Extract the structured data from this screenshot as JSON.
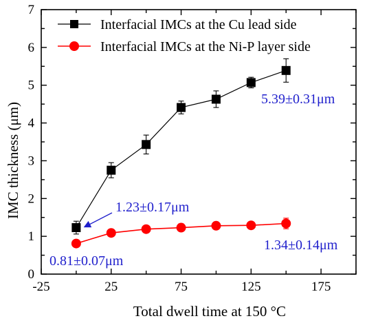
{
  "chart_data": {
    "type": "line",
    "xlabel": "Total dwell time at 150 °C",
    "ylabel": "IMC thickness (μm)",
    "xlim": [
      -25,
      200
    ],
    "ylim": [
      0,
      7
    ],
    "xticks": [
      -25,
      25,
      75,
      125,
      175
    ],
    "yticks": [
      0,
      1,
      2,
      3,
      4,
      5,
      6,
      7
    ],
    "x_minor_step": 25,
    "legend_position": "top-left",
    "series": [
      {
        "name": "Interfacial IMCs at the Cu lead side",
        "color": "#000000",
        "marker": "square",
        "x": [
          0,
          25,
          50,
          75,
          100,
          125,
          150
        ],
        "y": [
          1.23,
          2.75,
          3.43,
          4.41,
          4.63,
          5.07,
          5.39
        ],
        "err": [
          0.17,
          0.2,
          0.25,
          0.17,
          0.22,
          0.14,
          0.31
        ]
      },
      {
        "name": "Interfacial IMCs at the Ni-P layer side",
        "color": "#ff0000",
        "marker": "circle",
        "x": [
          0,
          25,
          50,
          75,
          100,
          125,
          150
        ],
        "y": [
          0.81,
          1.09,
          1.19,
          1.23,
          1.28,
          1.29,
          1.34
        ],
        "err": [
          0.07,
          0.06,
          0.06,
          0.06,
          0.06,
          0.06,
          0.14
        ]
      }
    ],
    "annotations": [
      {
        "text": "5.39±0.31μm",
        "color": "#1f1fcc"
      },
      {
        "text": "1.23±0.17μm",
        "color": "#1f1fcc"
      },
      {
        "text": "0.81±0.07μm",
        "color": "#1f1fcc"
      },
      {
        "text": "1.34±0.14μm",
        "color": "#1f1fcc"
      }
    ]
  }
}
